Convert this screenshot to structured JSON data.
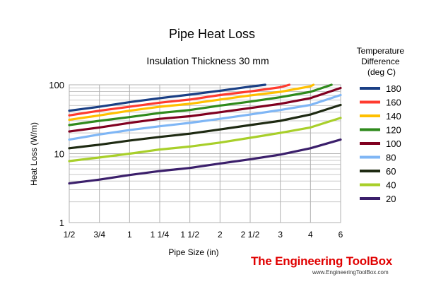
{
  "chart_data": {
    "type": "line",
    "title": "Pipe Heat Loss",
    "subtitle": "Insulation Thickness 30 mm",
    "xlabel": "Pipe Size (in)",
    "ylabel": "Heat Loss (W/m)",
    "yscale": "log",
    "ylim": [
      1,
      100
    ],
    "yticks": [
      "1",
      "10",
      "100"
    ],
    "categories": [
      "1/2",
      "3/4",
      "1",
      "1 1/4",
      "1 1/2",
      "2",
      "2 1/2",
      "3",
      "4",
      "6"
    ],
    "grid": true,
    "legend_title": "Temperature Difference (deg C)",
    "legend_position": "right",
    "series": [
      {
        "name": "180",
        "color": "#1a3f85",
        "x": [
          0,
          1,
          2,
          3,
          4,
          5,
          6,
          6.5
        ],
        "values": [
          42,
          48,
          56,
          64,
          72,
          82,
          94,
          100
        ]
      },
      {
        "name": "160",
        "color": "#ff3b2f",
        "x": [
          0,
          1,
          2,
          3,
          4,
          5,
          6,
          7,
          7.3
        ],
        "values": [
          36,
          42,
          48,
          55,
          61,
          71,
          80,
          92,
          100
        ]
      },
      {
        "name": "140",
        "color": "#ffc000",
        "x": [
          0,
          1,
          2,
          3,
          4,
          5,
          6,
          7,
          8,
          8.1
        ],
        "values": [
          31,
          36,
          42,
          48,
          53,
          61,
          70,
          79,
          95,
          100
        ]
      },
      {
        "name": "120",
        "color": "#2f8a1c",
        "x": [
          0,
          1,
          2,
          3,
          4,
          5,
          6,
          7,
          8,
          8.7
        ],
        "values": [
          26,
          30,
          34,
          39,
          43,
          50,
          57,
          66,
          79,
          100
        ]
      },
      {
        "name": "100",
        "color": "#800020",
        "x": [
          0,
          1,
          2,
          3,
          4,
          5,
          6,
          7,
          8,
          9
        ],
        "values": [
          21,
          24,
          28,
          32,
          35,
          40,
          46,
          53,
          64,
          90
        ]
      },
      {
        "name": "80",
        "color": "#7fb6f5",
        "x": [
          0,
          1,
          2,
          3,
          4,
          5,
          6,
          7,
          8,
          9
        ],
        "values": [
          16,
          19,
          22,
          25,
          28,
          32,
          37,
          43,
          51,
          71
        ]
      },
      {
        "name": "60",
        "color": "#1e2a12",
        "x": [
          0,
          1,
          2,
          3,
          4,
          5,
          6,
          7,
          8,
          9
        ],
        "values": [
          12,
          13.5,
          15.5,
          17.5,
          19.5,
          22.5,
          26,
          30,
          37,
          51
        ]
      },
      {
        "name": "40",
        "color": "#a8cf2a",
        "x": [
          0,
          1,
          2,
          3,
          4,
          5,
          6,
          7,
          8,
          9
        ],
        "values": [
          7.8,
          8.8,
          10,
          11.5,
          12.7,
          14.5,
          17,
          20,
          24,
          33
        ]
      },
      {
        "name": "20",
        "color": "#3b1f6b",
        "x": [
          0,
          1,
          2,
          3,
          4,
          5,
          6,
          7,
          8,
          9
        ],
        "values": [
          3.7,
          4.2,
          4.9,
          5.6,
          6.2,
          7.2,
          8.3,
          9.7,
          12,
          16
        ]
      }
    ]
  },
  "branding": {
    "name": "The Engineering ToolBox",
    "url": "www.EngineeringToolBox.com"
  }
}
